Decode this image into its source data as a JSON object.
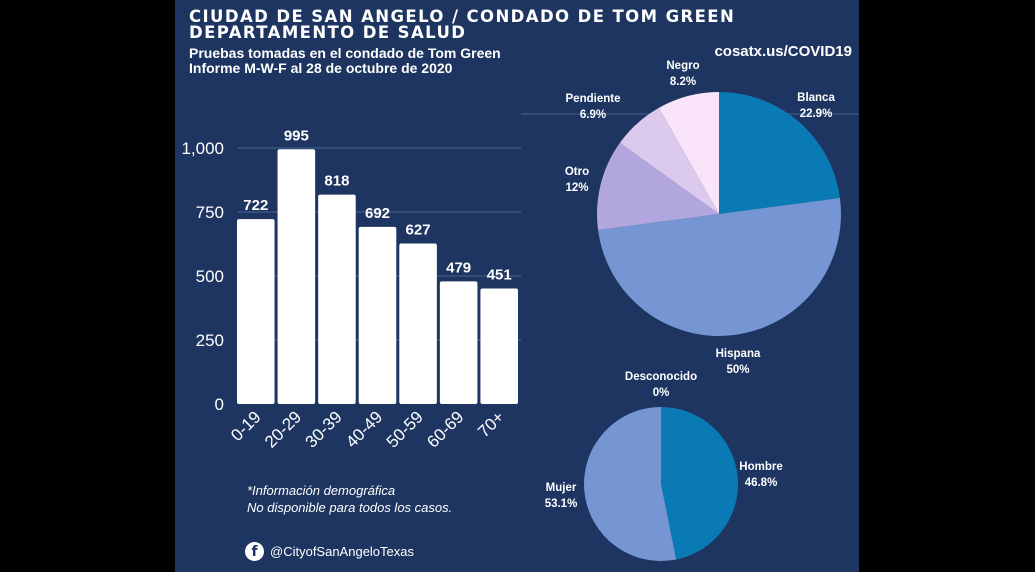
{
  "header": {
    "title_line1": "CIUDAD DE SAN ANGELO / CONDADO DE TOM GREEN",
    "title_line2": "DEPARTAMENTO DE SALUD",
    "subtitle_line1": "Pruebas tomadas en el condado de Tom Green",
    "subtitle_line2": "Informe M-W-F al 28 de octubre de 2020",
    "url": "cosatx.us/COVID19"
  },
  "footer": {
    "note_line1": "*Información demográfica",
    "note_line2": "No disponible para todos los casos.",
    "social_handle": "@CityofSanAngeloTexas",
    "social_icon": "facebook-icon"
  },
  "colors": {
    "background": "#1d3560",
    "bar": "#ffffff",
    "race": [
      "#0a7ab5",
      "#7596d2",
      "#b1a6dd",
      "#dccaee",
      "#f9e4fa"
    ],
    "sex": [
      "#0a7ab5",
      "#7596d2"
    ]
  },
  "chart_data": [
    {
      "type": "bar",
      "categories": [
        "0-19",
        "20-29",
        "30-39",
        "40-49",
        "50-59",
        "60-69",
        "70+"
      ],
      "values": [
        722,
        995,
        818,
        692,
        627,
        479,
        451
      ],
      "ylim": [
        0,
        1100
      ],
      "yticks": [
        0,
        250,
        500,
        750,
        1000
      ],
      "ytick_labels": [
        "0",
        "250",
        "500",
        "750",
        "1,000"
      ],
      "grid": true
    },
    {
      "type": "pie",
      "labels": [
        "Blanca",
        "Hispana",
        "Otro",
        "Pendiente",
        "Negro"
      ],
      "values": [
        22.9,
        50,
        12,
        6.9,
        8.2
      ],
      "value_labels": [
        "22.9%",
        "50%",
        "12%",
        "6.9%",
        "8.2%"
      ]
    },
    {
      "type": "pie",
      "labels": [
        "Hombre",
        "Mujer",
        "Desconocido"
      ],
      "values": [
        46.8,
        53.1,
        0
      ],
      "value_labels": [
        "46.8%",
        "53.1%",
        "0%"
      ]
    }
  ]
}
